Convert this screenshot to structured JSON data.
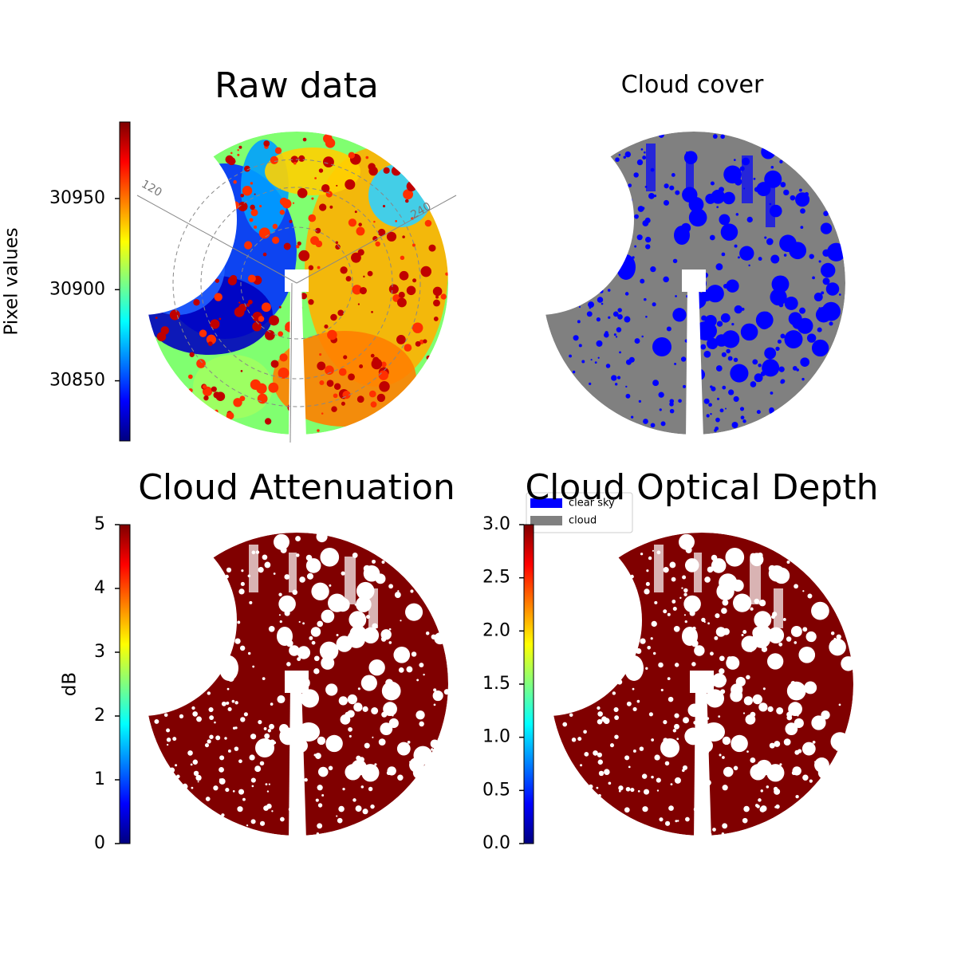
{
  "chart_data": [
    {
      "type": "image",
      "title": "Raw data",
      "colorbar": {
        "label": "Pixel values",
        "colormap": "jet",
        "lim": [
          30817,
          30992
        ],
        "ticks": [
          30850,
          30900,
          30950
        ]
      },
      "polar_labels": [
        "120",
        "240"
      ]
    },
    {
      "type": "image",
      "title": "Cloud cover",
      "legend": [
        {
          "name": "clear sky",
          "color": "#0000ff"
        },
        {
          "name": "cloud",
          "color": "#808080"
        }
      ]
    },
    {
      "type": "image",
      "title": "Cloud Attenuation",
      "colorbar": {
        "label": "dB",
        "colormap": "jet",
        "lim": [
          0,
          5
        ],
        "ticks": [
          0,
          1,
          2,
          3,
          4,
          5
        ]
      }
    },
    {
      "type": "image",
      "title": "Cloud Optical Depth",
      "colorbar": {
        "colormap": "jet",
        "lim": [
          0,
          3
        ],
        "ticks": [
          {
            "value": 0,
            "label": "0.0"
          },
          0.5,
          {
            "value": 1,
            "label": "1.0"
          },
          1.5,
          {
            "value": 2,
            "label": "2.0"
          },
          2.5,
          {
            "value": 3,
            "label": "3.0"
          }
        ]
      }
    }
  ]
}
